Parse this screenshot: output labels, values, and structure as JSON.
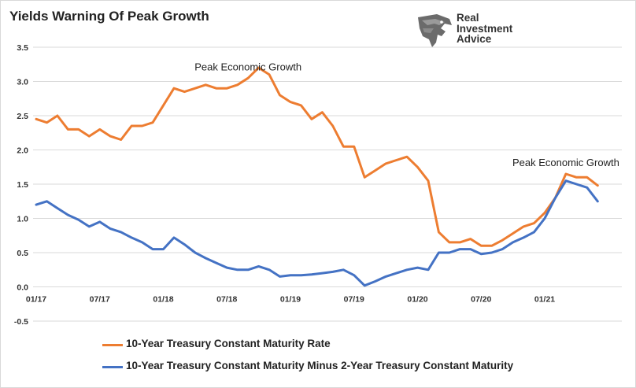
{
  "title": "Yields Warning Of Peak Growth",
  "logo": {
    "lines": [
      "Real",
      "Investment",
      "Advice"
    ],
    "icon": "eagle-head-icon"
  },
  "chart_data": {
    "type": "line",
    "title": "Yields Warning Of Peak Growth",
    "xlabel": "",
    "ylabel": "",
    "ylim": [
      -0.5,
      3.5
    ],
    "yticks": [
      "3.5",
      "3.0",
      "2.5",
      "2.0",
      "1.5",
      "1.0",
      "0.5",
      "0.0",
      "-0.5"
    ],
    "xticks": [
      "01/17",
      "07/17",
      "01/18",
      "07/18",
      "01/19",
      "07/19",
      "01/20",
      "07/20",
      "01/21"
    ],
    "grid": "horizontal",
    "legend_position": "bottom",
    "annotations": [
      {
        "text": "Peak Economic Growth",
        "x": "09/18",
        "y": 3.3
      },
      {
        "text": "Peak Economic Growth",
        "x": "03/21",
        "y": 1.9
      }
    ],
    "series": [
      {
        "name": "10-Year Treasury Constant Maturity Rate",
        "color": "#ED7D31",
        "x": [
          "01/17",
          "02/17",
          "03/17",
          "04/17",
          "05/17",
          "06/17",
          "07/17",
          "08/17",
          "09/17",
          "10/17",
          "11/17",
          "12/17",
          "01/18",
          "02/18",
          "03/18",
          "04/18",
          "05/18",
          "06/18",
          "07/18",
          "08/18",
          "09/18",
          "10/18",
          "11/18",
          "12/18",
          "01/19",
          "02/19",
          "03/19",
          "04/19",
          "05/19",
          "06/19",
          "07/19",
          "08/19",
          "09/19",
          "10/19",
          "11/19",
          "12/19",
          "01/20",
          "02/20",
          "03/20",
          "04/20",
          "05/20",
          "06/20",
          "07/20",
          "08/20",
          "09/20",
          "10/20",
          "11/20",
          "12/20",
          "01/21",
          "02/21",
          "03/21",
          "04/21",
          "05/21",
          "06/21"
        ],
        "values": [
          2.45,
          2.4,
          2.5,
          2.3,
          2.3,
          2.2,
          2.3,
          2.2,
          2.15,
          2.35,
          2.35,
          2.4,
          2.65,
          2.9,
          2.85,
          2.9,
          2.95,
          2.9,
          2.9,
          2.95,
          3.05,
          3.2,
          3.1,
          2.8,
          2.7,
          2.65,
          2.45,
          2.55,
          2.35,
          2.05,
          2.05,
          1.6,
          1.7,
          1.8,
          1.85,
          1.9,
          1.75,
          1.55,
          0.8,
          0.65,
          0.65,
          0.7,
          0.6,
          0.6,
          0.68,
          0.78,
          0.88,
          0.93,
          1.08,
          1.3,
          1.65,
          1.6,
          1.6,
          1.48
        ]
      },
      {
        "name": "10-Year Treasury Constant Maturity Minus 2-Year Treasury Constant Maturity",
        "color": "#4472C4",
        "x": [
          "01/17",
          "02/17",
          "03/17",
          "04/17",
          "05/17",
          "06/17",
          "07/17",
          "08/17",
          "09/17",
          "10/17",
          "11/17",
          "12/17",
          "01/18",
          "02/18",
          "03/18",
          "04/18",
          "05/18",
          "06/18",
          "07/18",
          "08/18",
          "09/18",
          "10/18",
          "11/18",
          "12/18",
          "01/19",
          "02/19",
          "03/19",
          "04/19",
          "05/19",
          "06/19",
          "07/19",
          "08/19",
          "09/19",
          "10/19",
          "11/19",
          "12/19",
          "01/20",
          "02/20",
          "03/20",
          "04/20",
          "05/20",
          "06/20",
          "07/20",
          "08/20",
          "09/20",
          "10/20",
          "11/20",
          "12/20",
          "01/21",
          "02/21",
          "03/21",
          "04/21",
          "05/21",
          "06/21"
        ],
        "values": [
          1.2,
          1.25,
          1.15,
          1.05,
          0.98,
          0.88,
          0.95,
          0.85,
          0.8,
          0.72,
          0.65,
          0.55,
          0.55,
          0.72,
          0.62,
          0.5,
          0.42,
          0.35,
          0.28,
          0.25,
          0.25,
          0.3,
          0.25,
          0.15,
          0.17,
          0.17,
          0.18,
          0.2,
          0.22,
          0.25,
          0.17,
          0.02,
          0.08,
          0.15,
          0.2,
          0.25,
          0.28,
          0.25,
          0.5,
          0.5,
          0.55,
          0.55,
          0.48,
          0.5,
          0.55,
          0.65,
          0.72,
          0.8,
          1.0,
          1.3,
          1.55,
          1.5,
          1.45,
          1.25
        ]
      }
    ]
  }
}
